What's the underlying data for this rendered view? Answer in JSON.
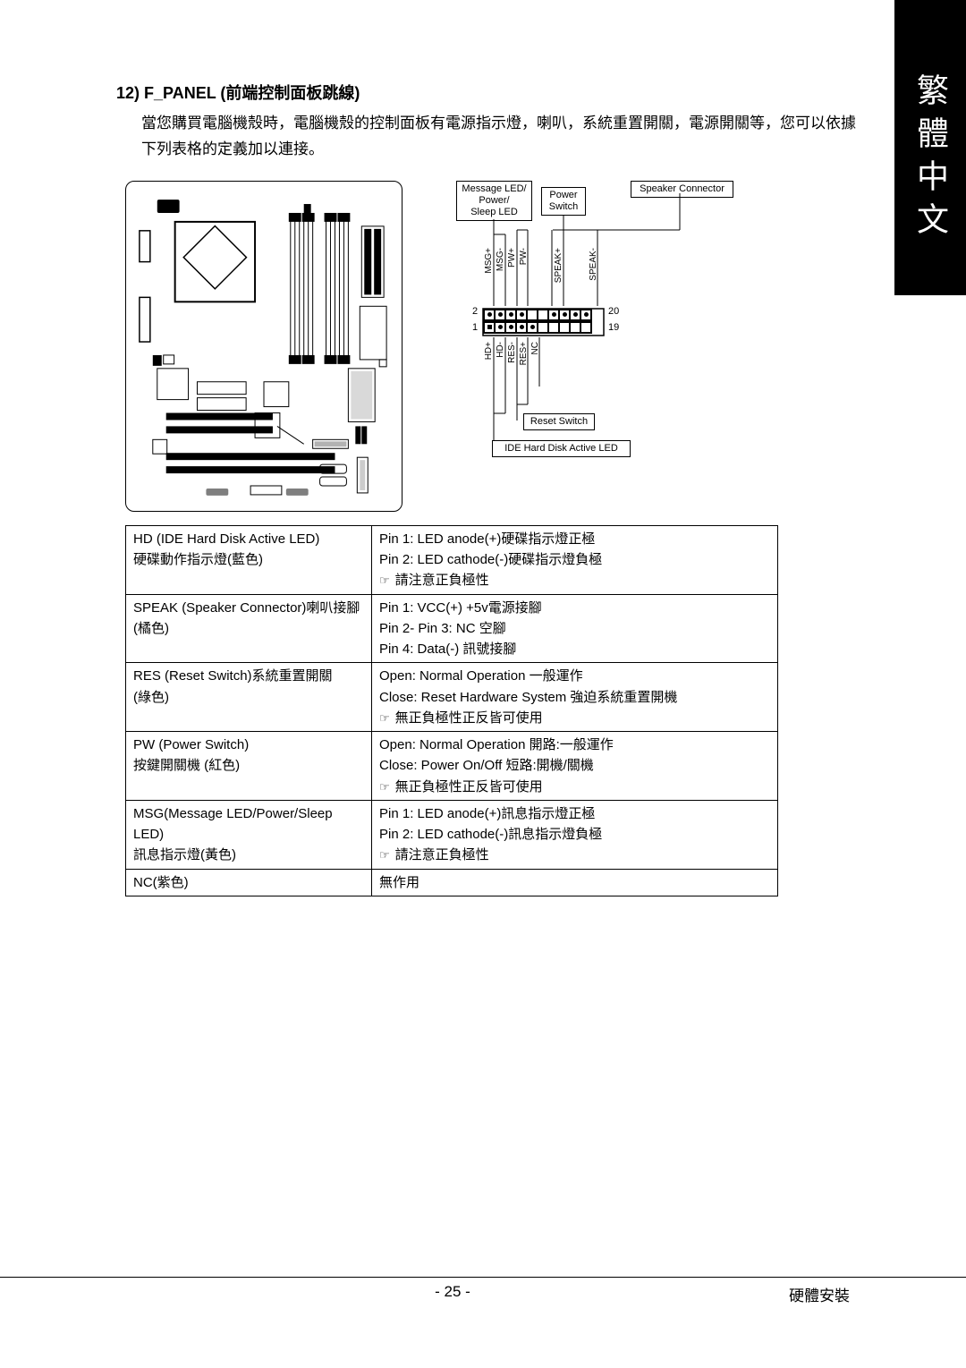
{
  "side_tab": "繁體中文",
  "section": {
    "number": "12)",
    "heading": "F_PANEL (前端控制面板跳線)",
    "desc": "當您購買電腦機殼時，電腦機殼的控制面板有電源指示燈，喇叭，系統重置開關，電源開關等，您可以依據下列表格的定義加以連接。"
  },
  "pin_diagram": {
    "top_left": "Message LED/\nPower/\nSleep LED",
    "top_mid": "Power\nSwitch",
    "top_right": "Speaker Connector",
    "top_pins": [
      "MSG+",
      "MSG-",
      "PW+",
      "PW-",
      "",
      "",
      "SPEAK+",
      "",
      "",
      "SPEAK-"
    ],
    "bot_pins": [
      "HD+",
      "HD-",
      "RES-",
      "RES+",
      "NC",
      "",
      "",
      "",
      "",
      ""
    ],
    "num_2": "2",
    "num_1": "1",
    "num_20": "20",
    "num_19": "19",
    "reset": "Reset Switch",
    "ide": "IDE Hard Disk Active LED"
  },
  "table": {
    "rows": [
      {
        "left": "HD (IDE Hard Disk Active LED)\n硬碟動作指示燈(藍色)",
        "right": [
          "Pin 1: LED anode(+)硬碟指示燈正極",
          "Pin 2: LED cathode(-)硬碟指示燈負極",
          {
            "note": "請注意正負極性"
          }
        ]
      },
      {
        "left": "SPEAK (Speaker Connector)喇叭接腳\n(橘色)",
        "right": [
          "Pin 1: VCC(+)  +5v電源接腳",
          "Pin 2- Pin 3: NC 空腳",
          "Pin 4: Data(-) 訊號接腳"
        ]
      },
      {
        "left": "RES (Reset Switch)系統重置開關\n(綠色)",
        "right": [
          "Open: Normal Operation 一般運作",
          "Close: Reset Hardware System 強迫系統重置開機",
          {
            "note": "無正負極性正反皆可使用"
          }
        ]
      },
      {
        "left": "PW (Power Switch)\n按鍵開關機 (紅色)",
        "right": [
          "Open: Normal Operation 開路:一般運作",
          "Close: Power On/Off 短路:開機/關機",
          {
            "note": "無正負極性正反皆可使用"
          }
        ]
      },
      {
        "left": "MSG(Message LED/Power/Sleep LED)\n訊息指示燈(黃色)",
        "right": [
          "Pin 1: LED anode(+)訊息指示燈正極",
          "Pin 2: LED cathode(-)訊息指示燈負極",
          {
            "note": "請注意正負極性"
          }
        ]
      },
      {
        "left": "NC(紫色)",
        "right": [
          "無作用"
        ]
      }
    ]
  },
  "footer": {
    "page": "- 25 -",
    "chapter": "硬體安裝"
  }
}
